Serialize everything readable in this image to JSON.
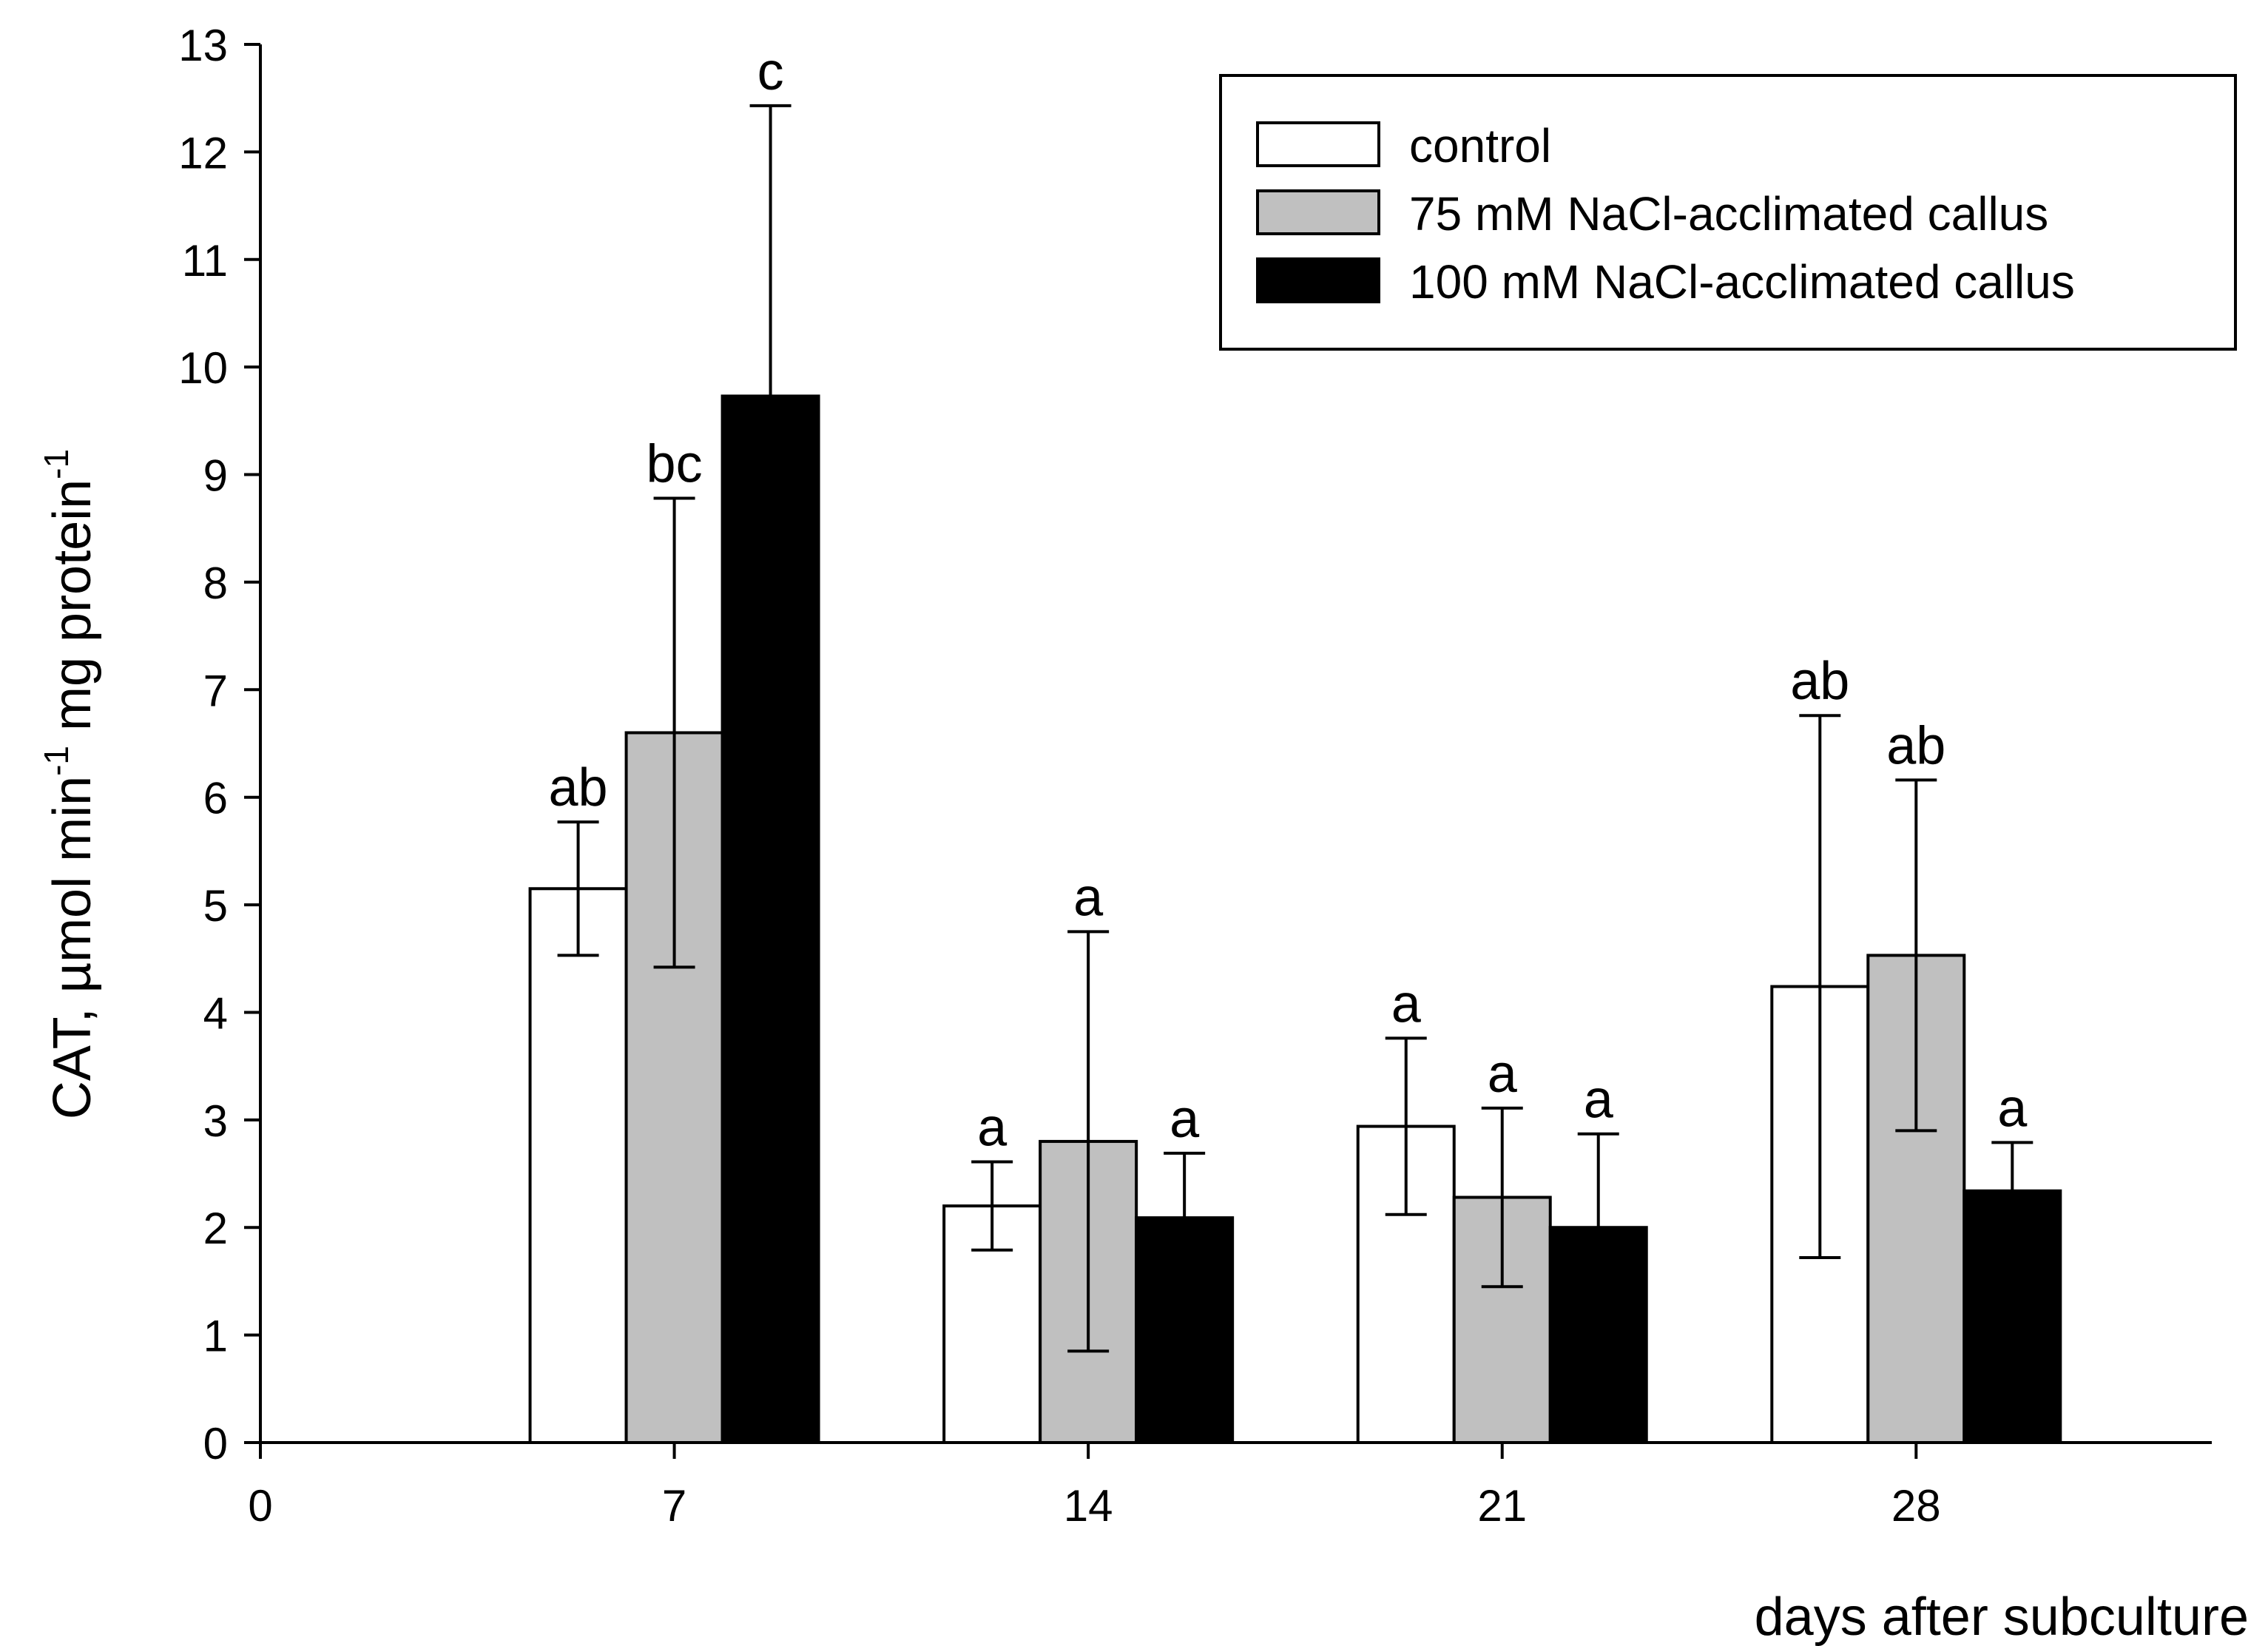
{
  "chart_data": {
    "type": "bar",
    "x": [
      7,
      14,
      21,
      28
    ],
    "x_ticks": [
      0,
      7,
      14,
      21,
      28
    ],
    "xlim": [
      0,
      33
    ],
    "ylim": [
      0,
      13
    ],
    "y_ticks": [
      0,
      1,
      2,
      3,
      4,
      5,
      6,
      7,
      8,
      9,
      10,
      11,
      12,
      13
    ],
    "xlabel": "days after subculture",
    "ylabel": {
      "main": "CAT, µmol min",
      "sup1": "-1",
      "mid": " mg protein",
      "sup2": "-1"
    },
    "grid": false,
    "legend_position": "top-right",
    "series": [
      {
        "name": "control",
        "color": "#ffffff",
        "values": [
          5.15,
          2.2,
          2.94,
          4.24
        ],
        "errors": [
          0.62,
          0.41,
          0.82,
          2.52
        ],
        "letters": [
          "ab",
          "a",
          "a",
          "ab"
        ]
      },
      {
        "name": "75 mM NaCl-acclimated callus",
        "color": "#c0c0c0",
        "values": [
          6.6,
          2.8,
          2.28,
          4.53
        ],
        "errors": [
          2.18,
          1.95,
          0.83,
          1.63
        ],
        "letters": [
          "bc",
          "a",
          "a",
          "ab"
        ]
      },
      {
        "name": "100 mM NaCl-acclimated callus",
        "color": "#000000",
        "values": [
          9.73,
          2.09,
          2.0,
          2.34
        ],
        "errors": [
          2.7,
          0.6,
          0.87,
          0.45
        ],
        "letters": [
          "c",
          "a",
          "a",
          "a"
        ]
      }
    ]
  }
}
